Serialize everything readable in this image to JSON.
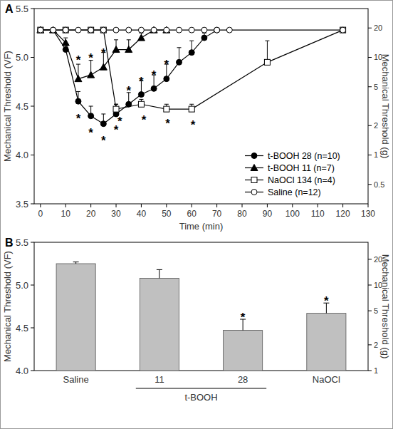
{
  "chart_data": [
    {
      "type": "line",
      "title": "A",
      "x_label": "Time (min)",
      "y_label": "Mechanical Threshold (VF)",
      "y2_label": "Mechanical Threshold (g)",
      "xlim": [
        -2.5,
        130
      ],
      "xticks": [
        0,
        10,
        20,
        30,
        40,
        50,
        60,
        70,
        80,
        90,
        100,
        110,
        120,
        130
      ],
      "ylim": [
        3.5,
        5.5
      ],
      "yticks": [
        {
          "value": 3.5,
          "label": "3.5"
        },
        {
          "value": 4,
          "label": "4.0"
        },
        {
          "value": 4.5,
          "label": "4.5"
        },
        {
          "value": 5,
          "label": "5.0"
        },
        {
          "value": 5.5,
          "label": "5.5"
        }
      ],
      "y2lim": [
        0.3162,
        31.62
      ],
      "y2ticks": [
        0.5,
        1,
        2,
        5,
        10,
        20
      ],
      "log": "y2",
      "legend": "lower right",
      "series": [
        {
          "name": "t-BOOH 28 (n=10)",
          "color": "#000000",
          "marker": "circle-filled",
          "line_style": "solid",
          "x": [
            0,
            5,
            10,
            15,
            20,
            25,
            30,
            35,
            40,
            45,
            50,
            55,
            60,
            65,
            70
          ],
          "values": [
            5.28,
            5.28,
            5.08,
            4.55,
            4.4,
            4.32,
            4.42,
            4.52,
            4.62,
            4.68,
            4.78,
            4.95,
            5.05,
            5.2,
            5.28
          ],
          "errors": [
            null,
            null,
            0.05,
            0.1,
            0.1,
            0.1,
            0.1,
            0.12,
            0.14,
            0.14,
            0.15,
            0.15,
            0.12,
            0.05,
            null
          ]
        },
        {
          "name": "t-BOOH 11 (n=7)",
          "color": "#000000",
          "marker": "triangle-filled",
          "line_style": "solid",
          "x": [
            0,
            5,
            10,
            15,
            20,
            25,
            30,
            35,
            40,
            45,
            50
          ],
          "values": [
            5.28,
            5.28,
            5.15,
            4.78,
            4.82,
            4.9,
            5.08,
            5.08,
            5.2,
            5.28,
            5.28
          ],
          "errors": [
            null,
            null,
            0.05,
            0.15,
            0.15,
            0.15,
            0.1,
            0.1,
            0.05,
            null,
            null
          ]
        },
        {
          "name": "NaOCl 134 (n=4)",
          "color": "#000000",
          "marker": "square-open",
          "line_style": "solid",
          "x": [
            0,
            10,
            20,
            25,
            30,
            40,
            50,
            60,
            90,
            120
          ],
          "values": [
            5.28,
            5.28,
            5.28,
            5.28,
            4.47,
            4.52,
            4.47,
            4.47,
            4.95,
            5.28
          ],
          "errors": [
            null,
            null,
            null,
            null,
            0.05,
            0.05,
            0.05,
            0.05,
            0.22,
            null
          ]
        },
        {
          "name": "Saline (n=12)",
          "color": "#000000",
          "marker": "circle-open",
          "line_style": "solid",
          "x": [
            0,
            5,
            10,
            15,
            20,
            25,
            30,
            35,
            40,
            45,
            50,
            55,
            60,
            65,
            70,
            75,
            120
          ],
          "values": [
            5.28,
            5.28,
            5.28,
            5.28,
            5.28,
            5.28,
            5.28,
            5.28,
            5.28,
            5.28,
            5.28,
            5.28,
            5.28,
            5.28,
            5.28,
            5.28,
            5.28
          ],
          "errors": [
            null,
            null,
            null,
            null,
            null,
            null,
            null,
            null,
            null,
            null,
            null,
            null,
            null,
            null,
            null,
            null,
            null
          ]
        }
      ],
      "annotations": [
        {
          "text": "*",
          "x": 15,
          "y": 4.4
        },
        {
          "text": "*",
          "x": 20,
          "y": 4.25
        },
        {
          "text": "*",
          "x": 25,
          "y": 4.17
        },
        {
          "text": "*",
          "x": 30,
          "y": 4.28
        },
        {
          "text": "*",
          "x": 35,
          "y": 4.68
        },
        {
          "text": "*",
          "x": 40,
          "y": 4.78
        },
        {
          "text": "*",
          "x": 45,
          "y": 4.84
        },
        {
          "text": "*",
          "x": 50,
          "y": 4.95
        },
        {
          "text": "*",
          "x": 15,
          "y": 5.0
        },
        {
          "text": "*",
          "x": 20,
          "y": 5.02
        },
        {
          "text": "*",
          "x": 25,
          "y": 5.07
        },
        {
          "text": "*",
          "x": 31.5,
          "y": 4.37
        },
        {
          "text": "*",
          "x": 41,
          "y": 4.38
        },
        {
          "text": "*",
          "x": 50.5,
          "y": 4.35
        },
        {
          "text": "*",
          "x": 60.5,
          "y": 4.33
        }
      ]
    },
    {
      "type": "bar",
      "title": "B",
      "y_label": "Mechanical Threshold (VF)",
      "y2_label": "Mechanical Threshold (g)",
      "categories": [
        "Saline",
        "11",
        "28",
        "NaOCl"
      ],
      "values": [
        5.25,
        5.08,
        4.47,
        4.67
      ],
      "errors": [
        0.02,
        0.1,
        0.13,
        0.12
      ],
      "color": "#c0c0c0",
      "group_labels": [
        {
          "label": "t-BOOH",
          "members": [
            "11",
            "28"
          ]
        }
      ],
      "ylim": [
        4,
        5.5
      ],
      "yticks": [
        {
          "value": 4,
          "label": "4.0"
        },
        {
          "value": 4.5,
          "label": "4.5"
        },
        {
          "value": 5,
          "label": "5.0"
        },
        {
          "value": 5.5,
          "label": "5.5"
        }
      ],
      "y2lim": [
        1,
        31.62
      ],
      "y2ticks": [
        1,
        2,
        5,
        10,
        20
      ],
      "log": "y2",
      "annotations": [
        {
          "text": "*",
          "category": "28",
          "y": 4.65
        },
        {
          "text": "*",
          "category": "NaOCl",
          "y": 4.84
        }
      ]
    }
  ]
}
